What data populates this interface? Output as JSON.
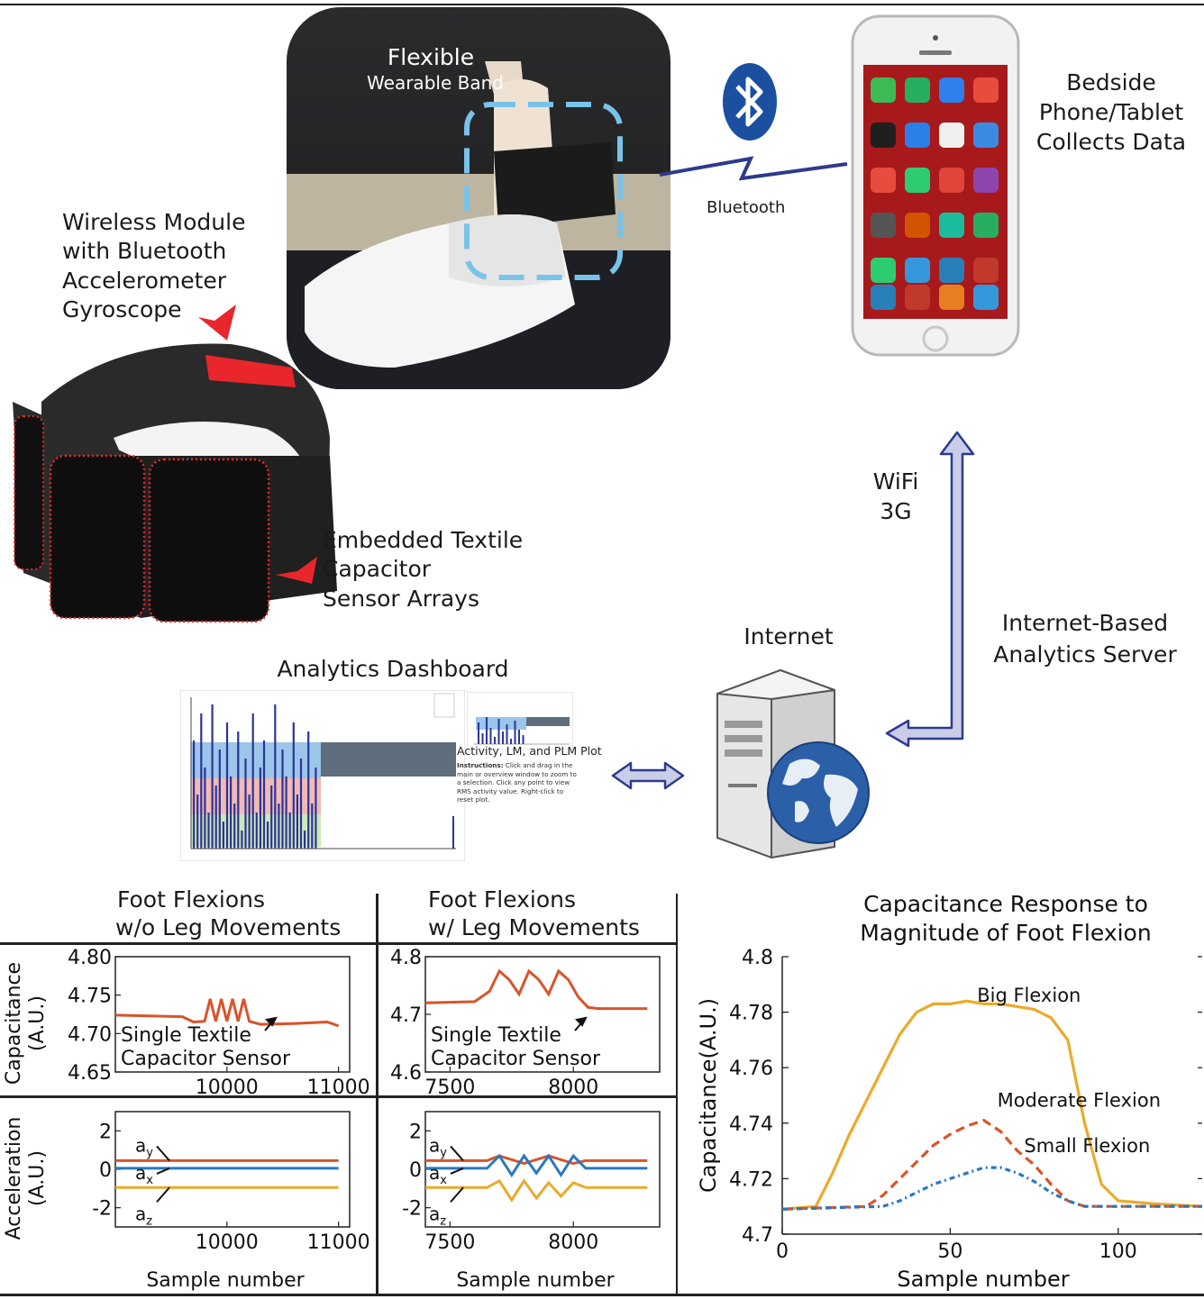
{
  "labels": {
    "flexible_title": "Flexible",
    "flexible_sub": "Wearable Band",
    "bedside": [
      "Bedside",
      "Phone/Tablet",
      "Collects Data"
    ],
    "bluetooth": "Bluetooth",
    "wireless_module": [
      "Wireless Module",
      "with Bluetooth",
      "Accelerometer",
      "Gyroscope"
    ],
    "embedded": [
      "Embedded Textile",
      "Capacitor",
      "Sensor Arrays"
    ],
    "wifi": [
      "WiFi",
      "3G"
    ],
    "internet": "Internet",
    "analytics_server": [
      "Internet-Based",
      "Analytics Server"
    ],
    "analytics_dashboard": "Analytics Dashboard",
    "dashboard_panel_title": "Activity, LM, and PLM Plot",
    "dashboard_instructions_bold": "Instructions:",
    "dashboard_instructions": "Click and drag in the main or overview window to zoom to a selection. Click any point to view RMS activity value. Right-click to reset plot."
  },
  "colors": {
    "orange": "#d9542b",
    "blue": "#2a78c2",
    "yellow": "#eaaa2a",
    "navy": "#2d3a8c",
    "arrow_fill": "#c9cde8",
    "red_marker": "#e8262b",
    "band_dash": "#79c3ea"
  },
  "icons": [
    "bluetooth-icon",
    "smartphone-icon",
    "server-icon",
    "globe-icon",
    "lightning-link-icon",
    "double-arrow-icon",
    "corner-arrow-icon"
  ],
  "chart_data": [
    {
      "type": "line",
      "title": "Foot Flexions w/o Leg Movements",
      "ylabel": "Capacitance (A.U.)",
      "xticks": [
        "10000",
        "11000"
      ],
      "yticks": [
        "4.80",
        "4.75",
        "4.70",
        "4.65"
      ],
      "ylim": [
        4.65,
        4.8
      ],
      "annotation": [
        "Single Textile",
        "Capacitor Sensor"
      ],
      "series": [
        {
          "color": "#d9542b",
          "x": [
            9000,
            9600,
            9700,
            9800,
            9850,
            9900,
            9950,
            10000,
            10050,
            10100,
            10150,
            10200,
            10300,
            10600,
            10900,
            11000
          ],
          "values": [
            4.724,
            4.722,
            4.715,
            4.716,
            4.745,
            4.716,
            4.745,
            4.716,
            4.745,
            4.716,
            4.745,
            4.716,
            4.712,
            4.713,
            4.715,
            4.71
          ]
        }
      ]
    },
    {
      "type": "line",
      "title": "Foot Flexions w/ Leg Movements",
      "ylabel": "Capacitance (A.U.)",
      "xticks": [
        "7500",
        "8000"
      ],
      "yticks": [
        "4.8",
        "4.7",
        "4.6"
      ],
      "ylim": [
        4.6,
        4.8
      ],
      "annotation": [
        "Single Textile",
        "Capacitor Sensor"
      ],
      "series": [
        {
          "color": "#d9542b",
          "x": [
            7400,
            7600,
            7660,
            7700,
            7740,
            7780,
            7820,
            7860,
            7900,
            7940,
            7980,
            8020,
            8060,
            8100,
            8300
          ],
          "values": [
            4.72,
            4.722,
            4.74,
            4.775,
            4.76,
            4.735,
            4.775,
            4.76,
            4.735,
            4.775,
            4.76,
            4.73,
            4.712,
            4.71,
            4.71
          ]
        }
      ]
    },
    {
      "type": "line",
      "ylabel": "Acceleration (A.U.)",
      "xlabel": "Sample number",
      "xticks": [
        "10000",
        "11000"
      ],
      "yticks": [
        "2",
        "0",
        "-2"
      ],
      "ylim": [
        -3,
        3
      ],
      "annotations": [
        "a_y",
        "a_x",
        "a_z"
      ],
      "series": [
        {
          "name": "a_y",
          "color": "#d9542b",
          "x": [
            9000,
            11000
          ],
          "values": [
            0.45,
            0.45
          ]
        },
        {
          "name": "a_x",
          "color": "#2a78c2",
          "x": [
            9000,
            11000
          ],
          "values": [
            0.05,
            0.05
          ]
        },
        {
          "name": "a_z",
          "color": "#eaaa2a",
          "x": [
            9000,
            11000
          ],
          "values": [
            -0.95,
            -0.95
          ]
        }
      ]
    },
    {
      "type": "line",
      "ylabel": "Acceleration (A.U.)",
      "xlabel": "Sample number",
      "xticks": [
        "7500",
        "8000"
      ],
      "yticks": [
        "2",
        "0",
        "-2"
      ],
      "ylim": [
        -3,
        3
      ],
      "annotations": [
        "a_y",
        "a_x",
        "a_z"
      ],
      "series": [
        {
          "name": "a_y",
          "color": "#d9542b",
          "x": [
            7400,
            7650,
            7700,
            7800,
            7900,
            8000,
            8050,
            8300
          ],
          "values": [
            0.45,
            0.45,
            0.7,
            0.3,
            0.7,
            0.3,
            0.45,
            0.45
          ]
        },
        {
          "name": "a_x",
          "color": "#2a78c2",
          "x": [
            7400,
            7650,
            7700,
            7750,
            7800,
            7850,
            7900,
            7950,
            8000,
            8050,
            8300
          ],
          "values": [
            0.05,
            0.05,
            0.7,
            -0.3,
            0.7,
            -0.2,
            0.7,
            -0.3,
            0.7,
            0.05,
            0.05
          ]
        },
        {
          "name": "a_z",
          "color": "#eaaa2a",
          "x": [
            7400,
            7650,
            7700,
            7750,
            7800,
            7850,
            7900,
            7950,
            8000,
            8050,
            8300
          ],
          "values": [
            -0.95,
            -0.95,
            -0.6,
            -1.6,
            -0.6,
            -1.5,
            -0.7,
            -1.4,
            -0.7,
            -0.95,
            -0.95
          ]
        }
      ]
    },
    {
      "type": "line",
      "title": "Capacitance Response to Magnitude of Foot Flexion",
      "xlabel": "Sample number",
      "ylabel": "Capacitance(A.U.)",
      "xlim": [
        0,
        125
      ],
      "ylim": [
        4.7,
        4.8
      ],
      "xticks": [
        "0",
        "50",
        "100"
      ],
      "yticks": [
        "4.8",
        "4.78",
        "4.76",
        "4.74",
        "4.72",
        "4.7"
      ],
      "series": [
        {
          "name": "Big Flexion",
          "color": "#eaaa2a",
          "style": "solid",
          "x": [
            0,
            10,
            15,
            20,
            25,
            30,
            35,
            40,
            45,
            50,
            55,
            60,
            65,
            70,
            75,
            80,
            85,
            90,
            95,
            100,
            110,
            125
          ],
          "values": [
            4.709,
            4.71,
            4.722,
            4.736,
            4.748,
            4.76,
            4.772,
            4.78,
            4.783,
            4.783,
            4.784,
            4.783,
            4.783,
            4.782,
            4.781,
            4.778,
            4.77,
            4.74,
            4.718,
            4.712,
            4.711,
            4.71
          ]
        },
        {
          "name": "Moderate Flexion",
          "color": "#d9542b",
          "style": "dash",
          "x": [
            0,
            25,
            30,
            35,
            40,
            45,
            50,
            55,
            60,
            65,
            70,
            75,
            80,
            85,
            90,
            100,
            125
          ],
          "values": [
            4.709,
            4.71,
            4.714,
            4.72,
            4.726,
            4.732,
            4.736,
            4.739,
            4.741,
            4.737,
            4.73,
            4.725,
            4.718,
            4.712,
            4.71,
            4.71,
            4.71
          ]
        },
        {
          "name": "Small Flexion",
          "color": "#2a78c2",
          "style": "dashdot",
          "x": [
            0,
            30,
            35,
            40,
            45,
            50,
            55,
            60,
            65,
            70,
            75,
            80,
            85,
            90,
            100,
            125
          ],
          "values": [
            4.709,
            4.71,
            4.712,
            4.715,
            4.718,
            4.72,
            4.722,
            4.724,
            4.724,
            4.722,
            4.719,
            4.715,
            4.712,
            4.71,
            4.71,
            4.71
          ]
        }
      ]
    }
  ]
}
